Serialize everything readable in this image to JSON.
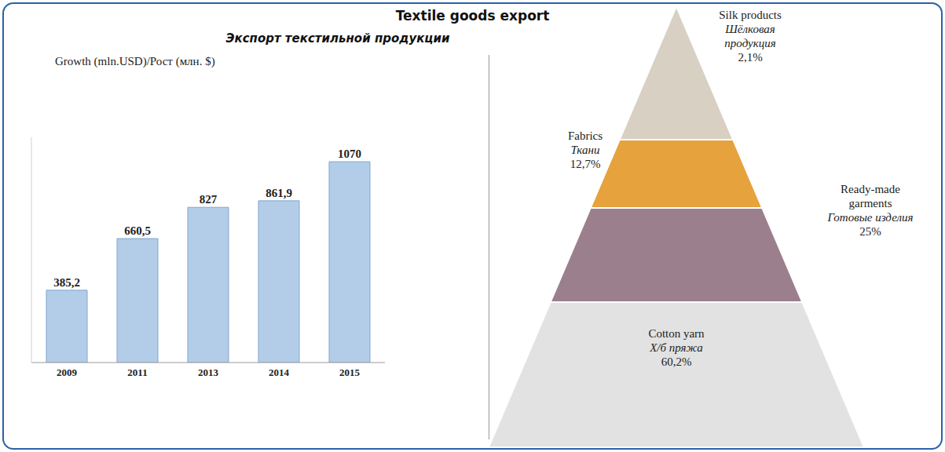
{
  "title": "Textile goods export",
  "subtitle": "Экспорт текстильной продукции",
  "chart_data": [
    {
      "type": "bar",
      "title": "Growth (mln.USD)/Рост (млн. $)",
      "categories": [
        "2009",
        "2011",
        "2013",
        "2014",
        "2015"
      ],
      "values": [
        385.2,
        660.5,
        827,
        861.9,
        1070
      ],
      "value_labels": [
        "385,2",
        "660,5",
        "827",
        "861,9",
        "1070"
      ],
      "data_labels": true,
      "color": "#b3cde8",
      "ylim": [
        0,
        1200
      ],
      "tick_labels": "x",
      "grid": false
    },
    {
      "type": "pyramid",
      "categories": [
        "Silk products",
        "Fabrics",
        "Ready-made garments",
        "Cotton yarn"
      ],
      "categories_ru": [
        "Шёлковая продукция",
        "Ткани",
        "Готовые изделия",
        "Х/б пряжа"
      ],
      "values": [
        2.1,
        12.7,
        25,
        60.2
      ],
      "value_labels": [
        "2,1%",
        "12,7%",
        "25%",
        "60,2%"
      ],
      "colors": [
        "#d8d0c2",
        "#e6a23c",
        "#9c7f8c",
        "#e2e2e2"
      ]
    }
  ]
}
